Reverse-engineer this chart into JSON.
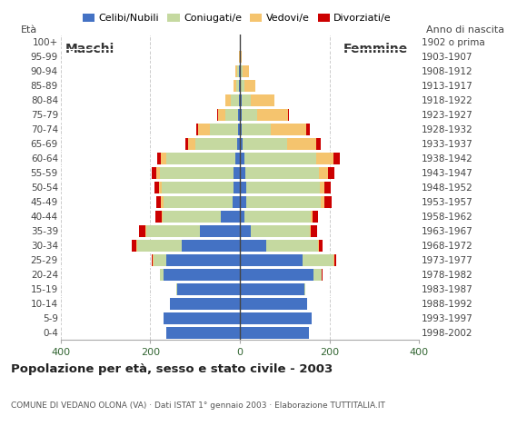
{
  "age_groups": [
    "0-4",
    "5-9",
    "10-14",
    "15-19",
    "20-24",
    "25-29",
    "30-34",
    "35-39",
    "40-44",
    "45-49",
    "50-54",
    "55-59",
    "60-64",
    "65-69",
    "70-74",
    "75-79",
    "80-84",
    "85-89",
    "90-94",
    "95-99",
    "100+"
  ],
  "birth_years": [
    "1998-2002",
    "1993-1997",
    "1988-1992",
    "1983-1987",
    "1978-1982",
    "1973-1977",
    "1968-1972",
    "1963-1967",
    "1958-1962",
    "1953-1957",
    "1948-1952",
    "1943-1947",
    "1938-1942",
    "1933-1937",
    "1928-1932",
    "1923-1927",
    "1918-1922",
    "1913-1917",
    "1908-1912",
    "1903-1907",
    "1902 o prima"
  ],
  "males_single": [
    165,
    170,
    155,
    140,
    170,
    165,
    130,
    90,
    42,
    16,
    13,
    14,
    10,
    5,
    4,
    3,
    2,
    1,
    2,
    0,
    0
  ],
  "males_married": [
    0,
    0,
    0,
    1,
    8,
    28,
    100,
    118,
    130,
    155,
    162,
    165,
    155,
    95,
    62,
    30,
    18,
    6,
    3,
    0,
    0
  ],
  "males_widowed": [
    0,
    0,
    0,
    0,
    0,
    1,
    2,
    3,
    3,
    5,
    5,
    8,
    12,
    16,
    28,
    16,
    12,
    6,
    4,
    2,
    0
  ],
  "males_divorced": [
    0,
    0,
    0,
    0,
    1,
    2,
    10,
    14,
    14,
    10,
    10,
    10,
    8,
    5,
    4,
    2,
    0,
    0,
    0,
    0,
    0
  ],
  "females_single": [
    155,
    160,
    150,
    145,
    165,
    140,
    60,
    25,
    10,
    15,
    14,
    12,
    10,
    6,
    5,
    4,
    5,
    3,
    3,
    0,
    0
  ],
  "females_married": [
    0,
    0,
    0,
    2,
    18,
    70,
    115,
    132,
    148,
    165,
    165,
    165,
    160,
    100,
    65,
    35,
    20,
    8,
    3,
    0,
    0
  ],
  "females_widowed": [
    0,
    0,
    0,
    0,
    0,
    1,
    2,
    2,
    4,
    8,
    10,
    20,
    40,
    65,
    78,
    68,
    52,
    24,
    14,
    5,
    0
  ],
  "females_divorced": [
    0,
    0,
    0,
    0,
    1,
    4,
    8,
    14,
    12,
    18,
    15,
    15,
    14,
    10,
    8,
    2,
    0,
    0,
    0,
    0,
    0
  ],
  "color_single": "#4472C4",
  "color_married": "#C5D9A0",
  "color_widowed": "#F5C46E",
  "color_divorced": "#CC0000",
  "legend_labels": [
    "Celibi/Nubili",
    "Coniugati/e",
    "Vedovi/e",
    "Divorziati/e"
  ],
  "title": "Popolazione per età, sesso e stato civile - 2003",
  "subtitle": "COMUNE DI VEDANO OLONA (VA) · Dati ISTAT 1° gennaio 2003 · Elaborazione TUTTITALIA.IT",
  "label_males": "Maschi",
  "label_females": "Femmine",
  "label_eta": "Età",
  "label_anno": "Anno di nascita",
  "xlim": 400
}
